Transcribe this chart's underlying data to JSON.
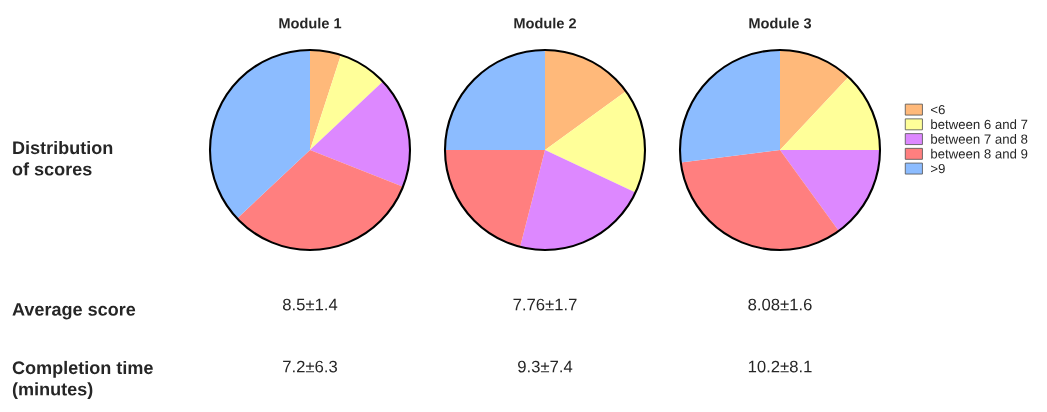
{
  "chart_data": [
    {
      "type": "pie",
      "title": "Module 1",
      "categories": [
        null,
        null,
        null,
        null,
        null
      ],
      "values": [
        5,
        8,
        18,
        32,
        37
      ],
      "colors": [
        "#ffb97a",
        "#ffff99",
        "#dd88ff",
        "#ff7f7f",
        "#8cbcff"
      ],
      "annotations": [
        "Distribution\nof scores",
        "Average score",
        "Completion time\n(minutes)",
        "8.5±1.4",
        "7.2±6.3"
      ]
    },
    {
      "type": "pie",
      "title": "Module 2",
      "categories": [
        null,
        null,
        null,
        null,
        null
      ],
      "values": [
        15,
        17,
        22,
        21,
        25
      ],
      "colors": [
        "#ffb97a",
        "#ffff99",
        "#dd88ff",
        "#ff7f7f",
        "#8cbcff"
      ],
      "annotations": [
        "7.76±1.7",
        "9.3±7.4"
      ]
    },
    {
      "type": "pie",
      "title": "Module 3",
      "categories": [
        "<6",
        "between 6 and 7",
        "between 7 and 8",
        "between 8 and 9",
        ">9"
      ],
      "values": [
        12,
        13,
        15,
        33,
        27
      ],
      "colors": [
        "#ffb97a",
        "#ffff99",
        "#dd88ff",
        "#ff7f7f",
        "#8cbcff"
      ],
      "annotations": [
        "8.08±1.6",
        "10.2±8.1"
      ],
      "legend": "right"
    }
  ]
}
